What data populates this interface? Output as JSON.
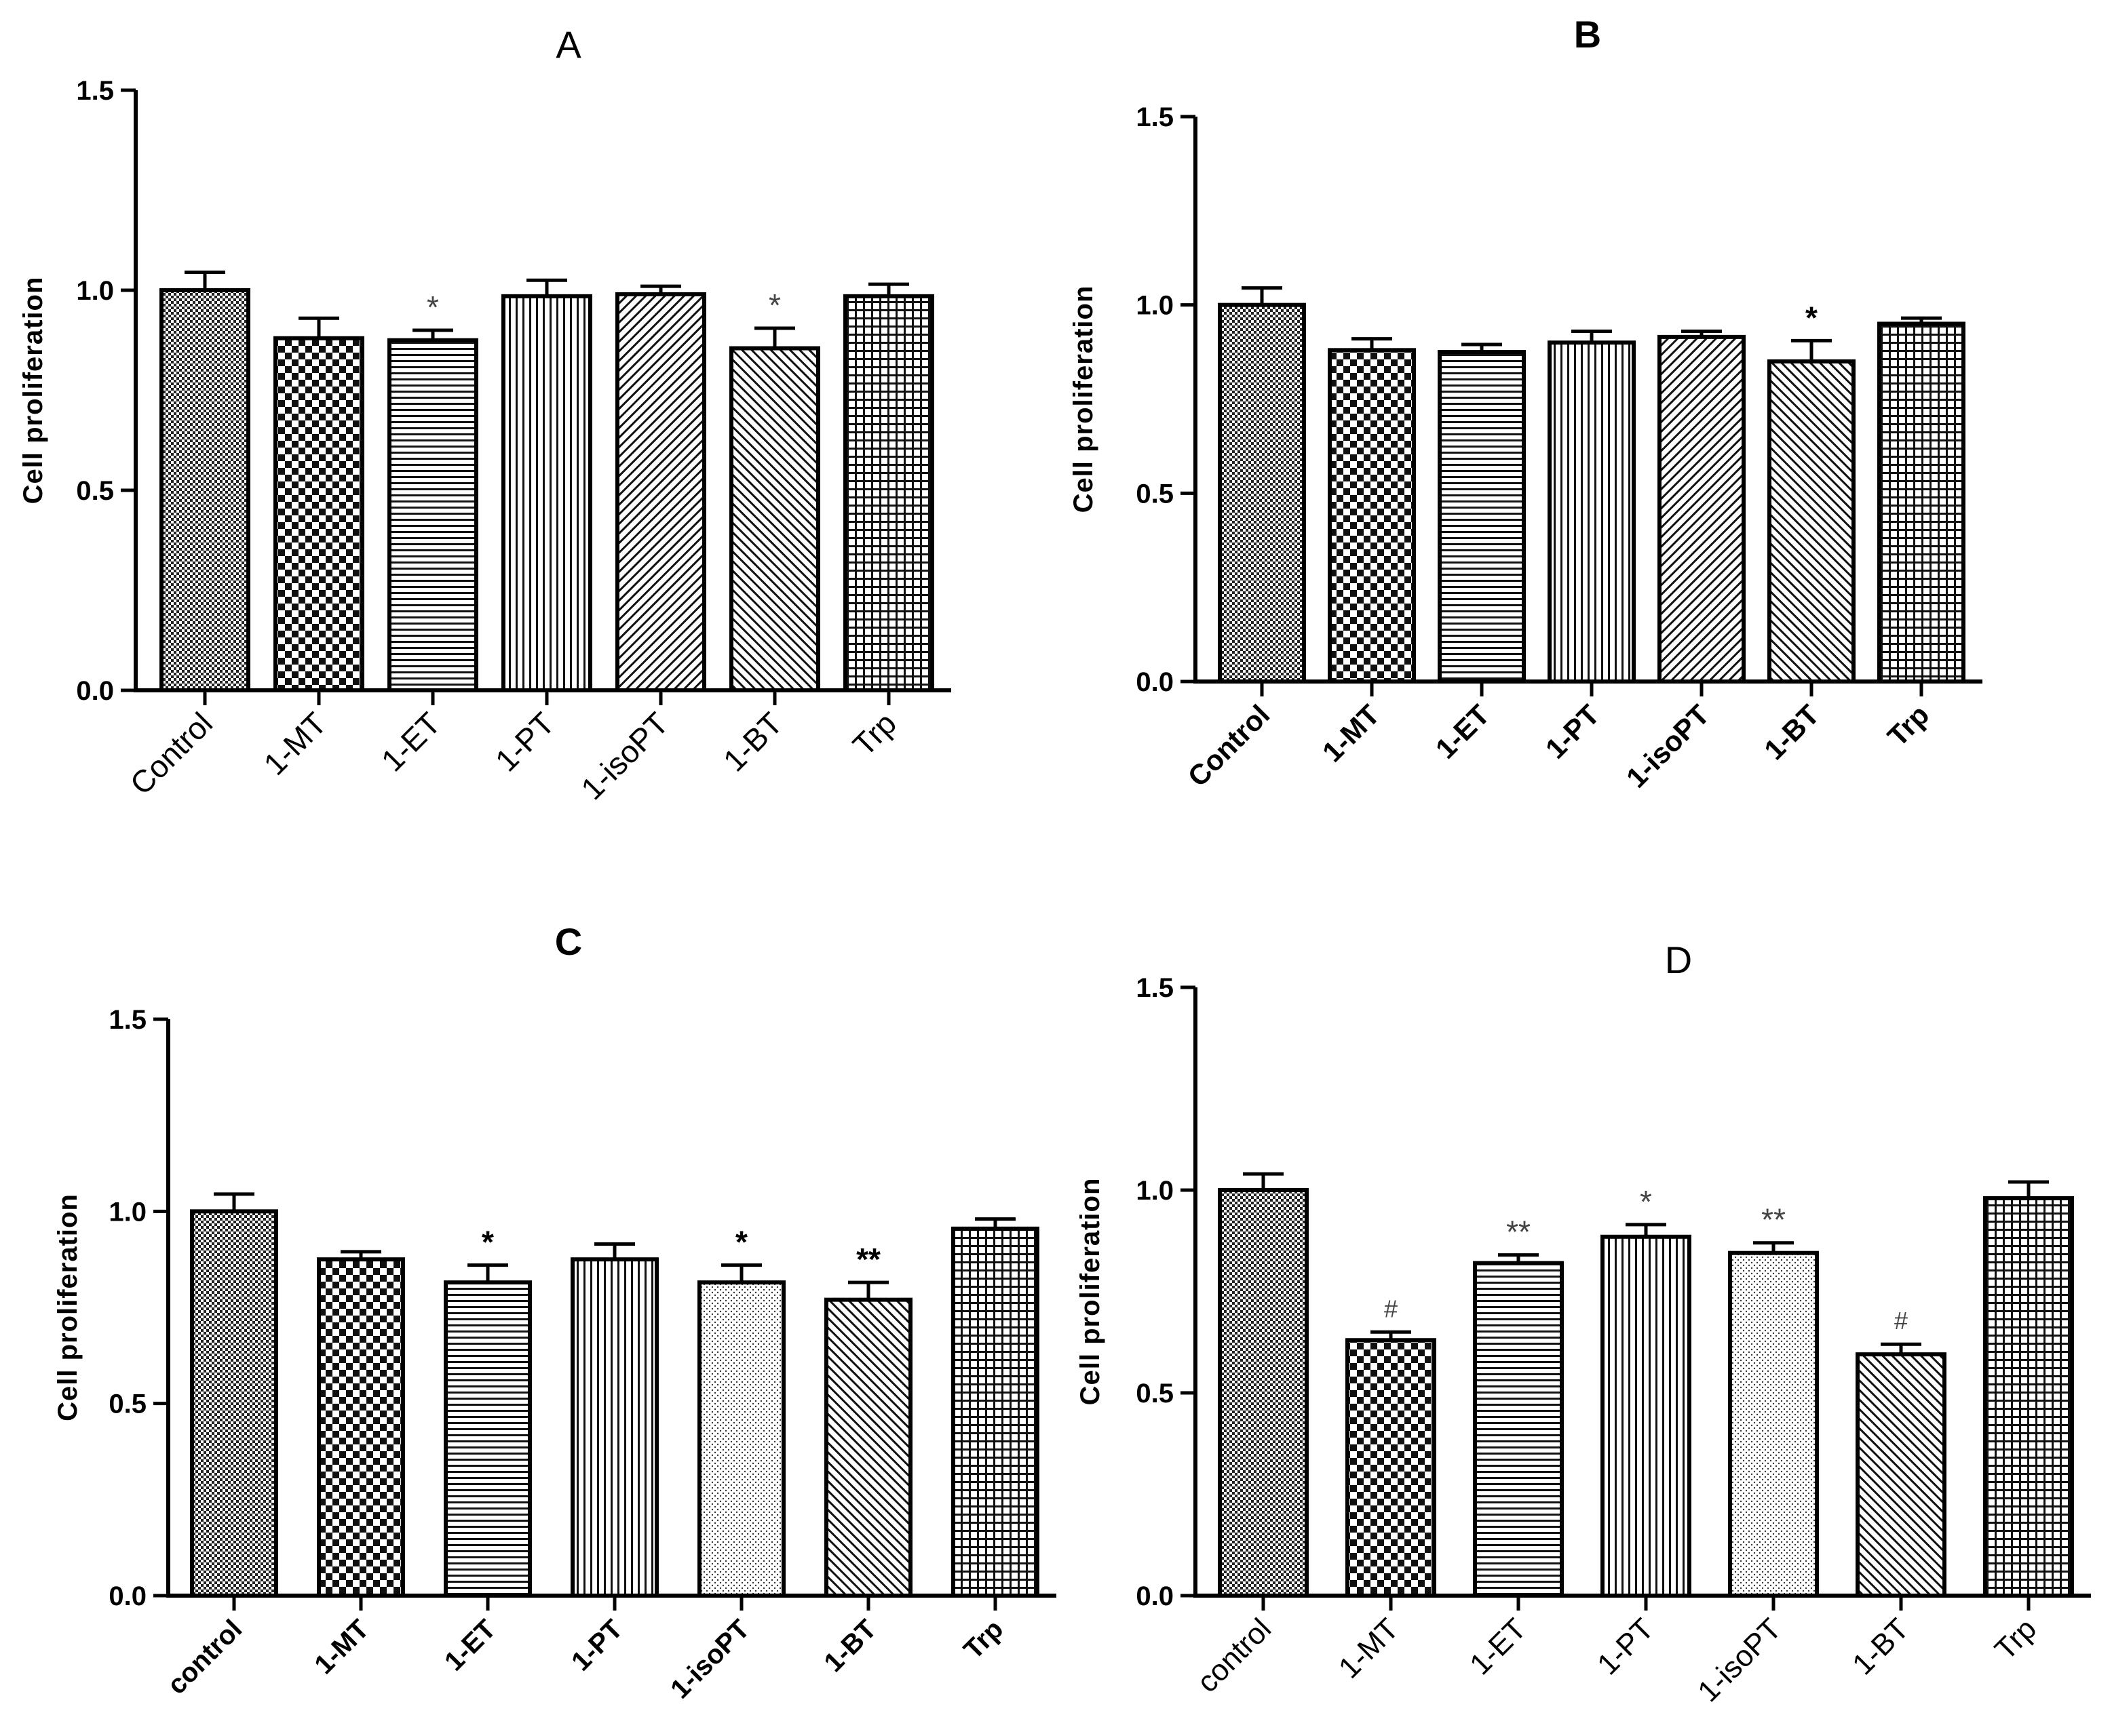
{
  "chart_data": [
    {
      "type": "bar",
      "title": "A",
      "xlabel": "",
      "ylabel": "Cell proliferation",
      "ylim": [
        0,
        1.5
      ],
      "yticks": [
        "0.0",
        "0.5",
        "1.0",
        "1.5"
      ],
      "categories": [
        "Control",
        "1-MT",
        "1-ET",
        "1-PT",
        "1-isoPT",
        "1-BT",
        "Trp"
      ],
      "values": [
        1.0,
        0.88,
        0.875,
        0.985,
        0.99,
        0.855,
        0.985
      ],
      "errors": [
        0.045,
        0.05,
        0.025,
        0.04,
        0.02,
        0.05,
        0.03
      ],
      "annotations": [
        "",
        "",
        "*",
        "",
        "",
        "*",
        ""
      ]
    },
    {
      "type": "bar",
      "title": "B",
      "xlabel": "",
      "ylabel": "Cell proliferation",
      "ylim": [
        0,
        1.5
      ],
      "yticks": [
        "0.0",
        "0.5",
        "1.0",
        "1.5"
      ],
      "categories": [
        "Control",
        "1-MT",
        "1-ET",
        "1-PT",
        "1-isoPT",
        "1-BT",
        "Trp"
      ],
      "values": [
        1.0,
        0.88,
        0.875,
        0.9,
        0.915,
        0.85,
        0.95
      ],
      "errors": [
        0.045,
        0.03,
        0.02,
        0.03,
        0.015,
        0.055,
        0.015
      ],
      "annotations": [
        "",
        "",
        "",
        "",
        "",
        "*",
        ""
      ]
    },
    {
      "type": "bar",
      "title": "C",
      "xlabel": "",
      "ylabel": "Cell proliferation",
      "ylim": [
        0,
        1.5
      ],
      "yticks": [
        "0.0",
        "0.5",
        "1.0",
        "1.5"
      ],
      "categories": [
        "control",
        "1-MT",
        "1-ET",
        "1-PT",
        "1-isoPT",
        "1-BT",
        "Trp"
      ],
      "values": [
        1.0,
        0.875,
        0.815,
        0.875,
        0.815,
        0.77,
        0.955
      ],
      "errors": [
        0.045,
        0.02,
        0.045,
        0.04,
        0.045,
        0.045,
        0.025
      ],
      "annotations": [
        "",
        "",
        "*",
        "",
        "*",
        "**",
        ""
      ]
    },
    {
      "type": "bar",
      "title": "D",
      "xlabel": "",
      "ylabel": "Cell proliferation",
      "ylim": [
        0,
        1.5
      ],
      "yticks": [
        "0.0",
        "0.5",
        "1.0",
        "1.5"
      ],
      "categories": [
        "control",
        "1-MT",
        "1-ET",
        "1-PT",
        "1-isoPT",
        "1-BT",
        "Trp"
      ],
      "values": [
        1.0,
        0.63,
        0.82,
        0.885,
        0.845,
        0.595,
        0.98
      ],
      "errors": [
        0.04,
        0.02,
        0.02,
        0.03,
        0.025,
        0.025,
        0.04
      ],
      "annotations": [
        "",
        "#",
        "**",
        "*",
        "**",
        "#",
        ""
      ]
    }
  ]
}
